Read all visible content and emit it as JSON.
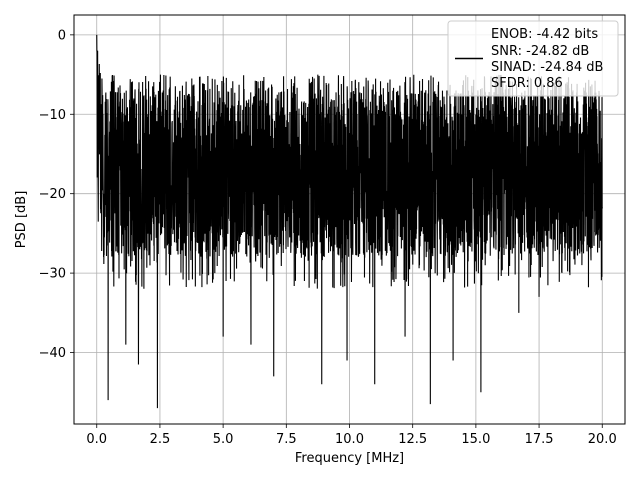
{
  "chart_data": {
    "type": "line",
    "xlabel": "Frequency [MHz]",
    "ylabel": "PSD [dB]",
    "xlim": [
      -0.9,
      20.9
    ],
    "ylim": [
      -49,
      2.5
    ],
    "xticks": [
      0.0,
      2.5,
      5.0,
      7.5,
      10.0,
      12.5,
      15.0,
      17.5,
      20.0
    ],
    "xtick_labels": [
      "0.0",
      "2.5",
      "5.0",
      "7.5",
      "10.0",
      "12.5",
      "15.0",
      "17.5",
      "20.0"
    ],
    "yticks": [
      0,
      -10,
      -20,
      -30,
      -40
    ],
    "ytick_labels": [
      "0",
      "−10",
      "−20",
      "−30",
      "−40"
    ],
    "grid": true,
    "legend_position": "top-right",
    "series": [
      {
        "name": "",
        "color": "#000000",
        "approx_points": 4000,
        "x_range": [
          0.0,
          20.0
        ],
        "peak": {
          "x": 0.0,
          "y": 0.0
        },
        "upper_envelope_db": -7,
        "lower_envelope_db": -28,
        "median_db": -17,
        "deep_nulls": [
          {
            "x": 0.45,
            "y": -46
          },
          {
            "x": 1.15,
            "y": -39
          },
          {
            "x": 1.65,
            "y": -41.5
          },
          {
            "x": 2.4,
            "y": -47
          },
          {
            "x": 5.0,
            "y": -38
          },
          {
            "x": 6.1,
            "y": -39
          },
          {
            "x": 7.0,
            "y": -43
          },
          {
            "x": 8.9,
            "y": -44
          },
          {
            "x": 9.9,
            "y": -41
          },
          {
            "x": 11.0,
            "y": -44
          },
          {
            "x": 12.2,
            "y": -38
          },
          {
            "x": 13.2,
            "y": -46.5
          },
          {
            "x": 14.1,
            "y": -41
          },
          {
            "x": 15.2,
            "y": -45
          },
          {
            "x": 16.7,
            "y": -35
          },
          {
            "x": 17.5,
            "y": -33
          }
        ]
      }
    ],
    "legend_lines": [
      "ENOB: -4.42 bits",
      "SNR: -24.82 dB",
      "SINAD: -24.84 dB",
      "SFDR: 0.86"
    ]
  }
}
